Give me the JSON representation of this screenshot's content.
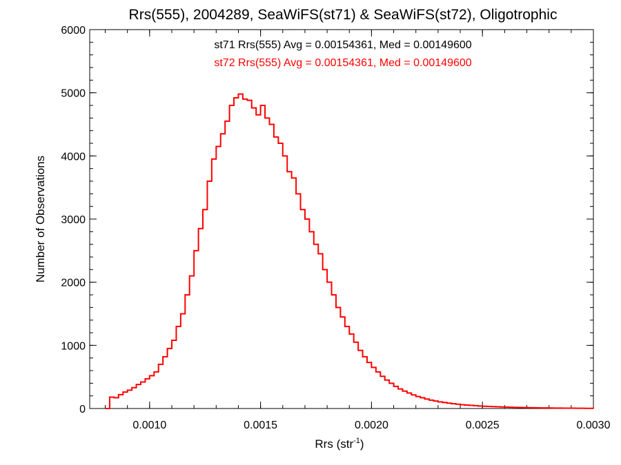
{
  "chart_data": {
    "type": "histogram",
    "title": "Rrs(555), 2004289, SeaWiFS(st71) & SeaWiFS(st72), Oligotrophic",
    "xlabel": "Rrs (str",
    "xlabel_sup": "-1",
    "xlabel_end": ")",
    "ylabel": "Number of Observations",
    "xlim": [
      0.00073,
      0.003
    ],
    "ylim": [
      0,
      6000
    ],
    "grid": false,
    "xticks": [
      0.001,
      0.0015,
      0.002,
      0.0025,
      0.003
    ],
    "xtick_labels": [
      "0.0010",
      "0.0015",
      "0.0020",
      "0.0025",
      "0.0030"
    ],
    "yticks": [
      0,
      1000,
      2000,
      3000,
      4000,
      5000,
      6000
    ],
    "ytick_labels": [
      "0",
      "1000",
      "2000",
      "3000",
      "4000",
      "5000",
      "6000"
    ],
    "annotations": [
      {
        "text": "st71 Rrs(555) Avg = 0.00154361, Med = 0.00149600",
        "color": "#000000"
      },
      {
        "text": "st72 Rrs(555) Avg = 0.00154361, Med = 0.00149600",
        "color": "#ff0000"
      }
    ],
    "series": [
      {
        "color": "#ff0000",
        "bins": [
          [
            0.0008,
            0
          ],
          [
            0.00082,
            180
          ],
          [
            0.00084,
            170
          ],
          [
            0.00086,
            220
          ],
          [
            0.00088,
            260
          ],
          [
            0.0009,
            290
          ],
          [
            0.00092,
            330
          ],
          [
            0.00094,
            380
          ],
          [
            0.00096,
            420
          ],
          [
            0.00098,
            470
          ],
          [
            0.001,
            520
          ],
          [
            0.00102,
            580
          ],
          [
            0.00104,
            700
          ],
          [
            0.00106,
            820
          ],
          [
            0.00108,
            950
          ],
          [
            0.0011,
            1080
          ],
          [
            0.00112,
            1300
          ],
          [
            0.00114,
            1500
          ],
          [
            0.00116,
            1800
          ],
          [
            0.00118,
            2100
          ],
          [
            0.0012,
            2500
          ],
          [
            0.00122,
            2850
          ],
          [
            0.00124,
            3150
          ],
          [
            0.00126,
            3600
          ],
          [
            0.00128,
            3950
          ],
          [
            0.0013,
            4150
          ],
          [
            0.00132,
            4350
          ],
          [
            0.00134,
            4550
          ],
          [
            0.00136,
            4800
          ],
          [
            0.00138,
            4920
          ],
          [
            0.0014,
            4980
          ],
          [
            0.00142,
            4900
          ],
          [
            0.00144,
            4880
          ],
          [
            0.00146,
            4760
          ],
          [
            0.00148,
            4650
          ],
          [
            0.0015,
            4800
          ],
          [
            0.00152,
            4600
          ],
          [
            0.00154,
            4500
          ],
          [
            0.00156,
            4300
          ],
          [
            0.00158,
            4200
          ],
          [
            0.0016,
            4000
          ],
          [
            0.00162,
            3750
          ],
          [
            0.00164,
            3650
          ],
          [
            0.00166,
            3400
          ],
          [
            0.00168,
            3150
          ],
          [
            0.0017,
            3000
          ],
          [
            0.00172,
            2800
          ],
          [
            0.00174,
            2600
          ],
          [
            0.00176,
            2450
          ],
          [
            0.00178,
            2200
          ],
          [
            0.0018,
            2000
          ],
          [
            0.00182,
            1800
          ],
          [
            0.00184,
            1600
          ],
          [
            0.00186,
            1450
          ],
          [
            0.00188,
            1300
          ],
          [
            0.0019,
            1180
          ],
          [
            0.00192,
            1050
          ],
          [
            0.00194,
            920
          ],
          [
            0.00196,
            820
          ],
          [
            0.00198,
            730
          ],
          [
            0.002,
            650
          ],
          [
            0.00202,
            580
          ],
          [
            0.00204,
            510
          ],
          [
            0.00206,
            450
          ],
          [
            0.00208,
            400
          ],
          [
            0.0021,
            350
          ],
          [
            0.00212,
            310
          ],
          [
            0.00214,
            275
          ],
          [
            0.00216,
            245
          ],
          [
            0.00218,
            215
          ],
          [
            0.0022,
            190
          ],
          [
            0.00222,
            170
          ],
          [
            0.00224,
            150
          ],
          [
            0.00226,
            132
          ],
          [
            0.00228,
            118
          ],
          [
            0.0023,
            105
          ],
          [
            0.00232,
            95
          ],
          [
            0.00234,
            85
          ],
          [
            0.00236,
            76
          ],
          [
            0.00238,
            68
          ],
          [
            0.0024,
            60
          ],
          [
            0.00242,
            55
          ],
          [
            0.00244,
            50
          ],
          [
            0.00246,
            45
          ],
          [
            0.00248,
            40
          ],
          [
            0.0025,
            36
          ],
          [
            0.00252,
            33
          ],
          [
            0.00254,
            30
          ],
          [
            0.00256,
            27
          ],
          [
            0.00258,
            25
          ],
          [
            0.0026,
            22
          ],
          [
            0.00262,
            20
          ],
          [
            0.00264,
            18
          ],
          [
            0.00266,
            17
          ],
          [
            0.00268,
            15
          ],
          [
            0.0027,
            14
          ],
          [
            0.00272,
            12
          ],
          [
            0.00274,
            11
          ],
          [
            0.00276,
            10
          ],
          [
            0.00278,
            9
          ],
          [
            0.0028,
            8
          ],
          [
            0.00282,
            7
          ],
          [
            0.00284,
            7
          ],
          [
            0.00286,
            6
          ],
          [
            0.00288,
            5
          ],
          [
            0.0029,
            5
          ],
          [
            0.00292,
            4
          ],
          [
            0.00294,
            4
          ],
          [
            0.00296,
            3
          ],
          [
            0.00298,
            3
          ]
        ]
      }
    ]
  }
}
